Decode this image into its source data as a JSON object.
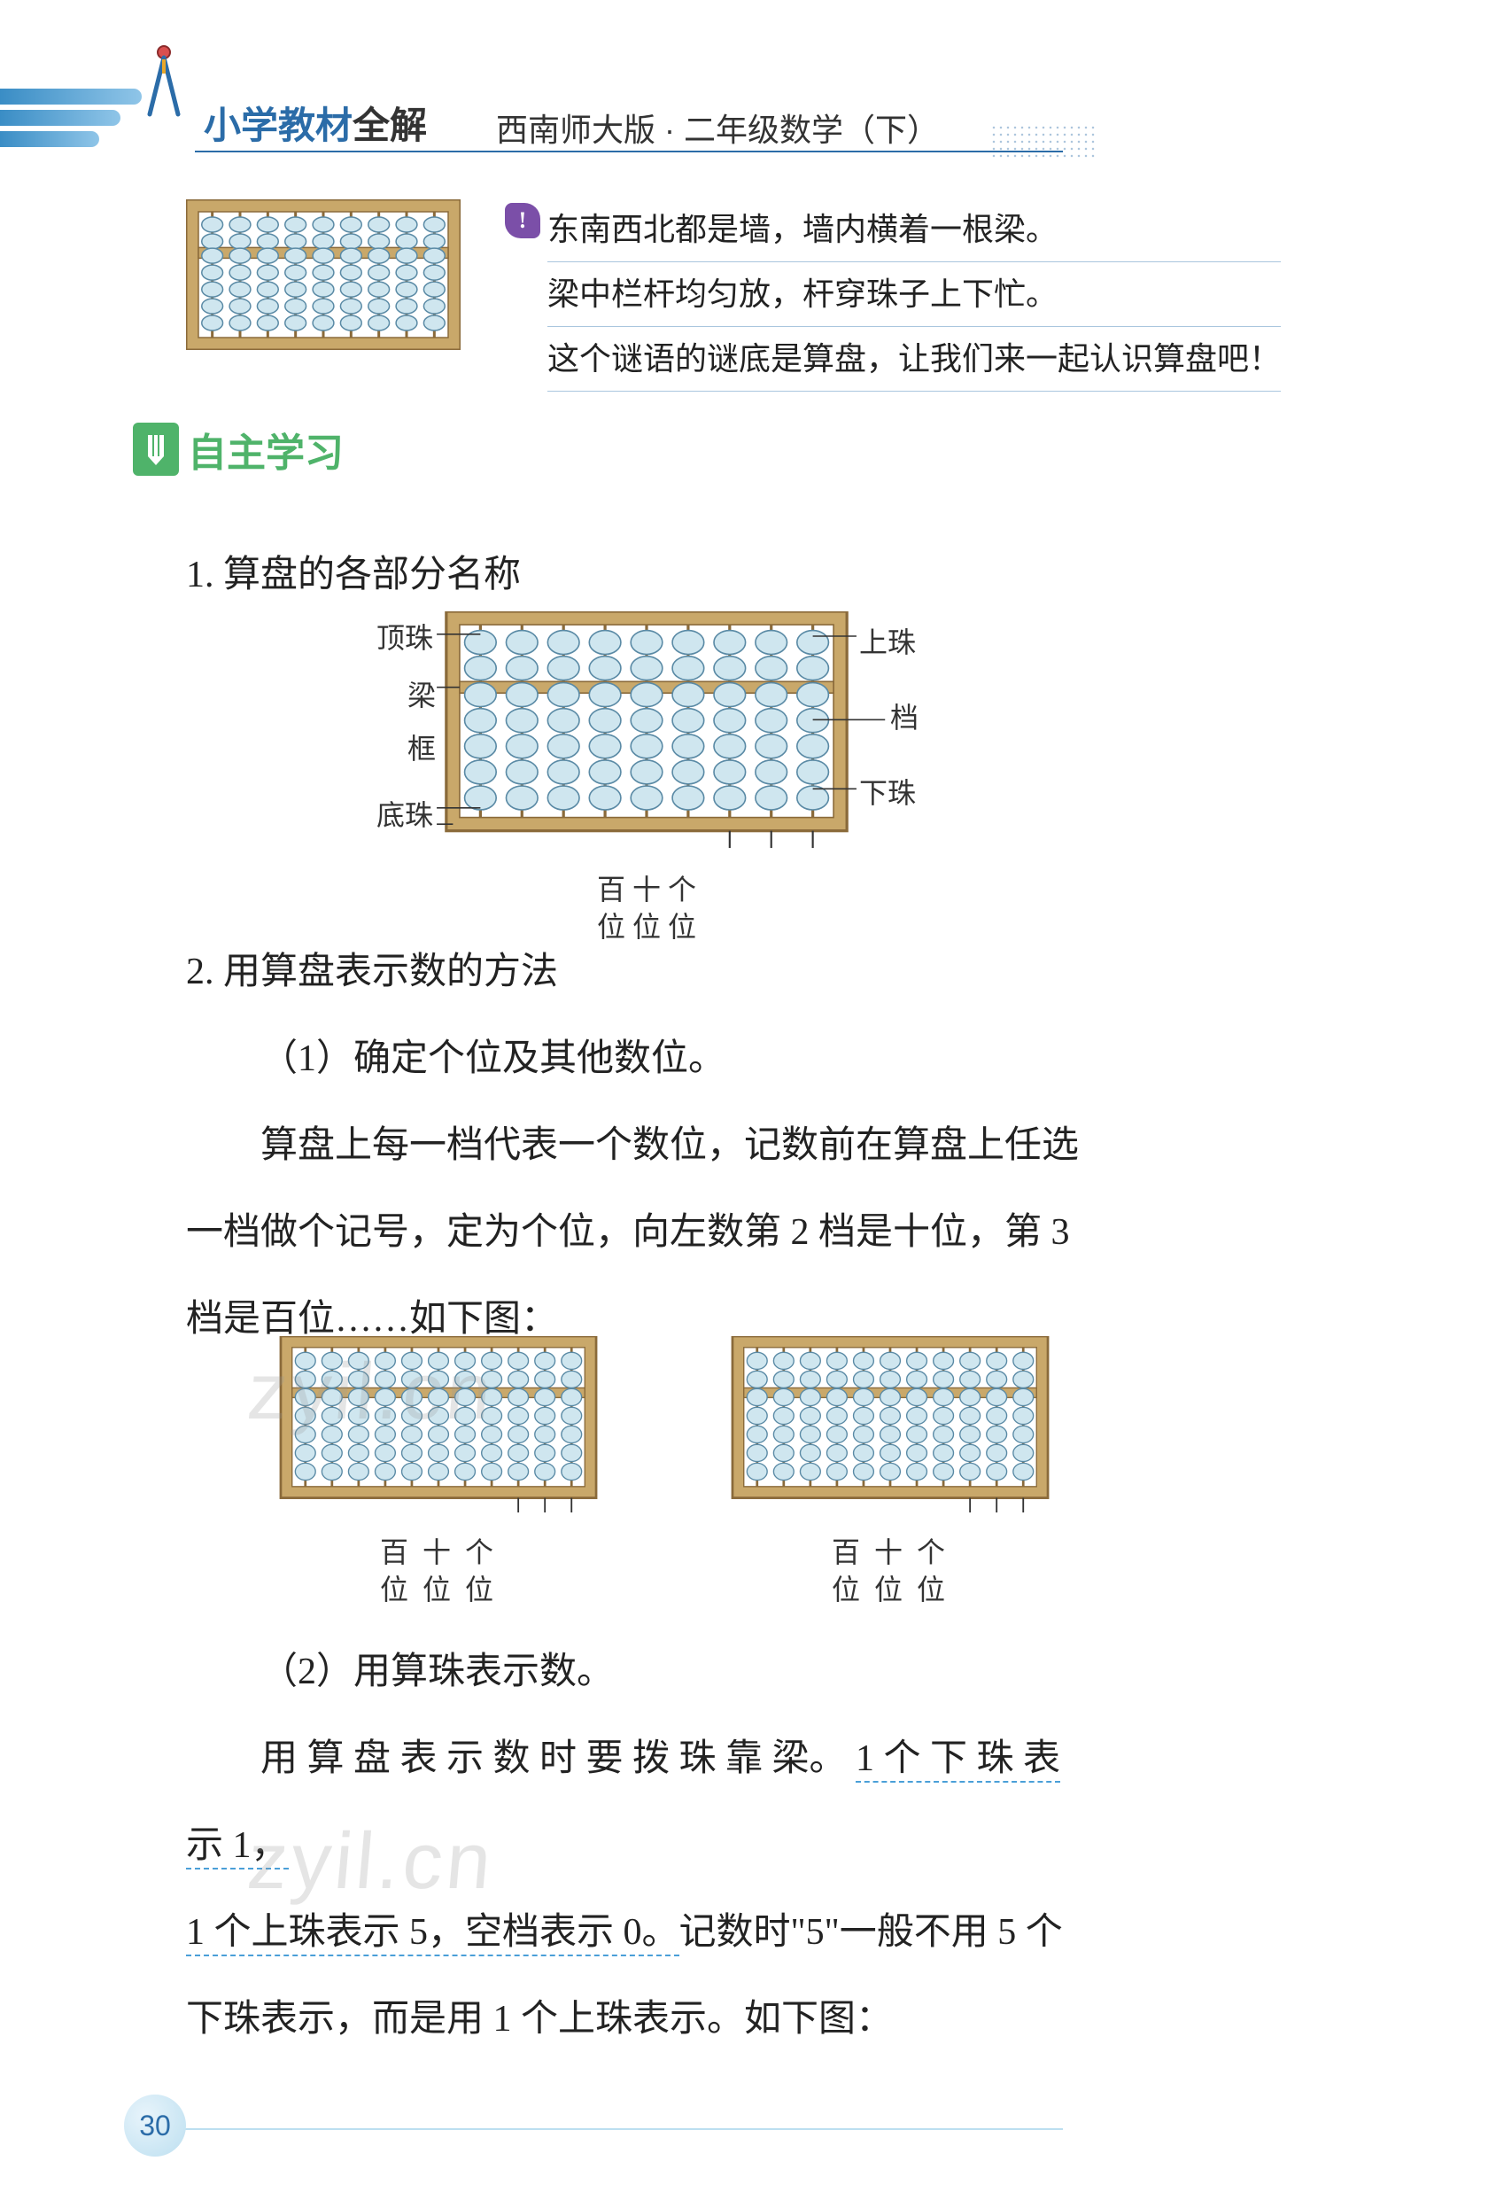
{
  "header": {
    "series": "小学教材",
    "series_accent": "全解",
    "edition": "西南师大版 · 二年级数学（下）"
  },
  "riddle": {
    "tip_symbol": "!",
    "line1": "东南西北都是墙，墙内横着一根梁。",
    "line2": "梁中栏杆均匀放，杆穿珠子上下忙。",
    "line3": "这个谜语的谜底是算盘，让我们来一起认识算盘吧！"
  },
  "section": {
    "title": "自主学习"
  },
  "heading1": "1. 算盘的各部分名称",
  "abacus_parts": {
    "left_labels": [
      "顶珠",
      "梁",
      "框",
      "底珠"
    ],
    "right_labels": [
      "上珠",
      "档",
      "下珠"
    ],
    "bottom_col_labels": "百 十 个",
    "bottom_row2": "位 位 位"
  },
  "heading2": "2. 用算盘表示数的方法",
  "sub1": "（1）确定个位及其他数位。",
  "para1": "算盘上每一档代表一个数位，记数前在算盘上任选一档做个记号，定为个位，向左数第 2 档是十位，第 3 档是百位……如下图：",
  "pair_labels": {
    "line1": "百 十 个",
    "line2": "位 位 位"
  },
  "sub2": "（2）用算珠表示数。",
  "para2_a": "用 算 盘 表 示 数 时 要 拨 珠 靠 梁。 ",
  "para2_u1": "1 个 下 珠 表 示 1，",
  "para2_u2": "1 个上珠表示 5，空档表示 0。",
  "para2_b": "记数时\"5\"一般不用 5 个下珠表示，而是用 1 个上珠表示。如下图：",
  "page_number": "30",
  "watermark_text": "zyil.cn",
  "abacus_style": {
    "frame_fill": "#c9a86a",
    "frame_stroke": "#8a6a3a",
    "bead_fill": "#cfe6ef",
    "bead_stroke": "#5a8aa5",
    "rod_stroke": "#8a6a3a",
    "beam_fill": "#c9a86a"
  }
}
